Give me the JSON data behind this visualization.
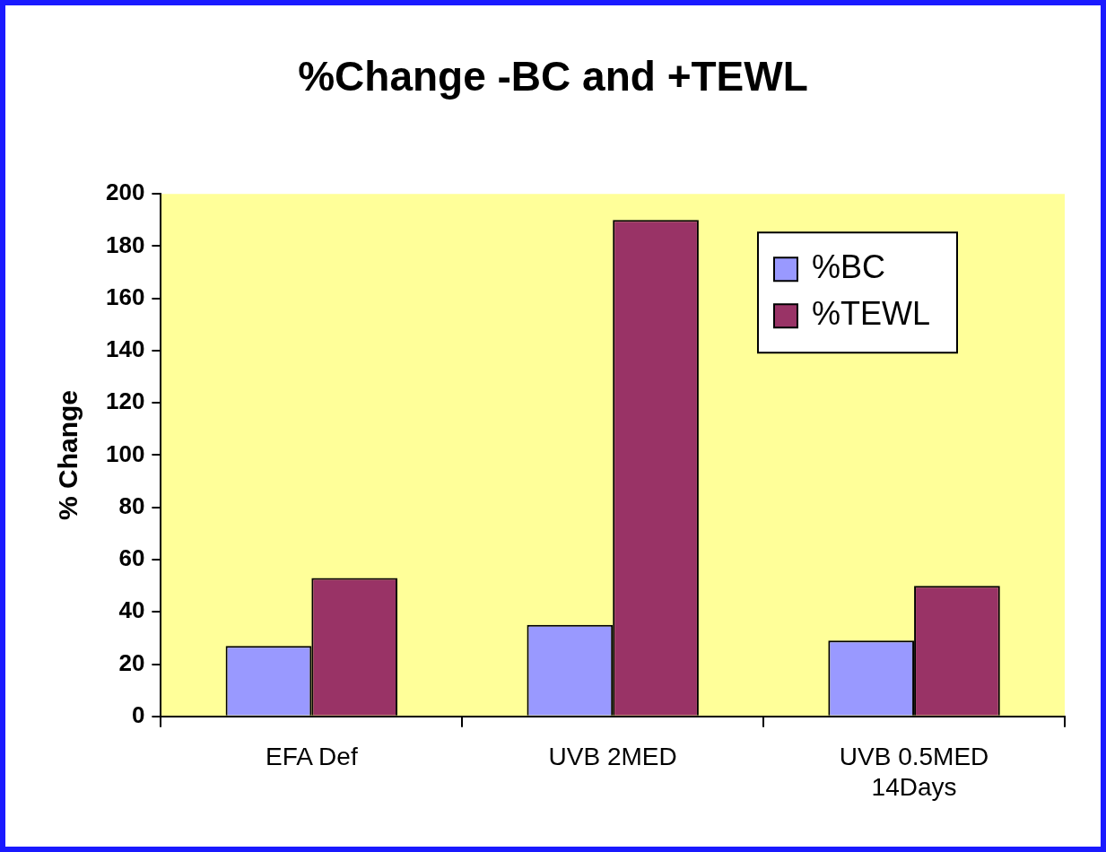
{
  "chart_data": {
    "type": "bar",
    "title": "%Change -BC and +TEWL",
    "ylabel": "% Change",
    "categories": [
      "EFA Def",
      "UVB 2MED",
      "UVB 0.5MED 14Days"
    ],
    "series": [
      {
        "name": "%BC",
        "color": "#9999ff",
        "values": [
          27,
          35,
          29
        ]
      },
      {
        "name": "%TEWL",
        "color": "#993366",
        "values": [
          53,
          190,
          50
        ]
      }
    ],
    "ylim": [
      0,
      200
    ],
    "yticks": [
      0,
      20,
      40,
      60,
      80,
      100,
      120,
      140,
      160,
      180,
      200
    ],
    "grid": false,
    "legend": "top right"
  }
}
